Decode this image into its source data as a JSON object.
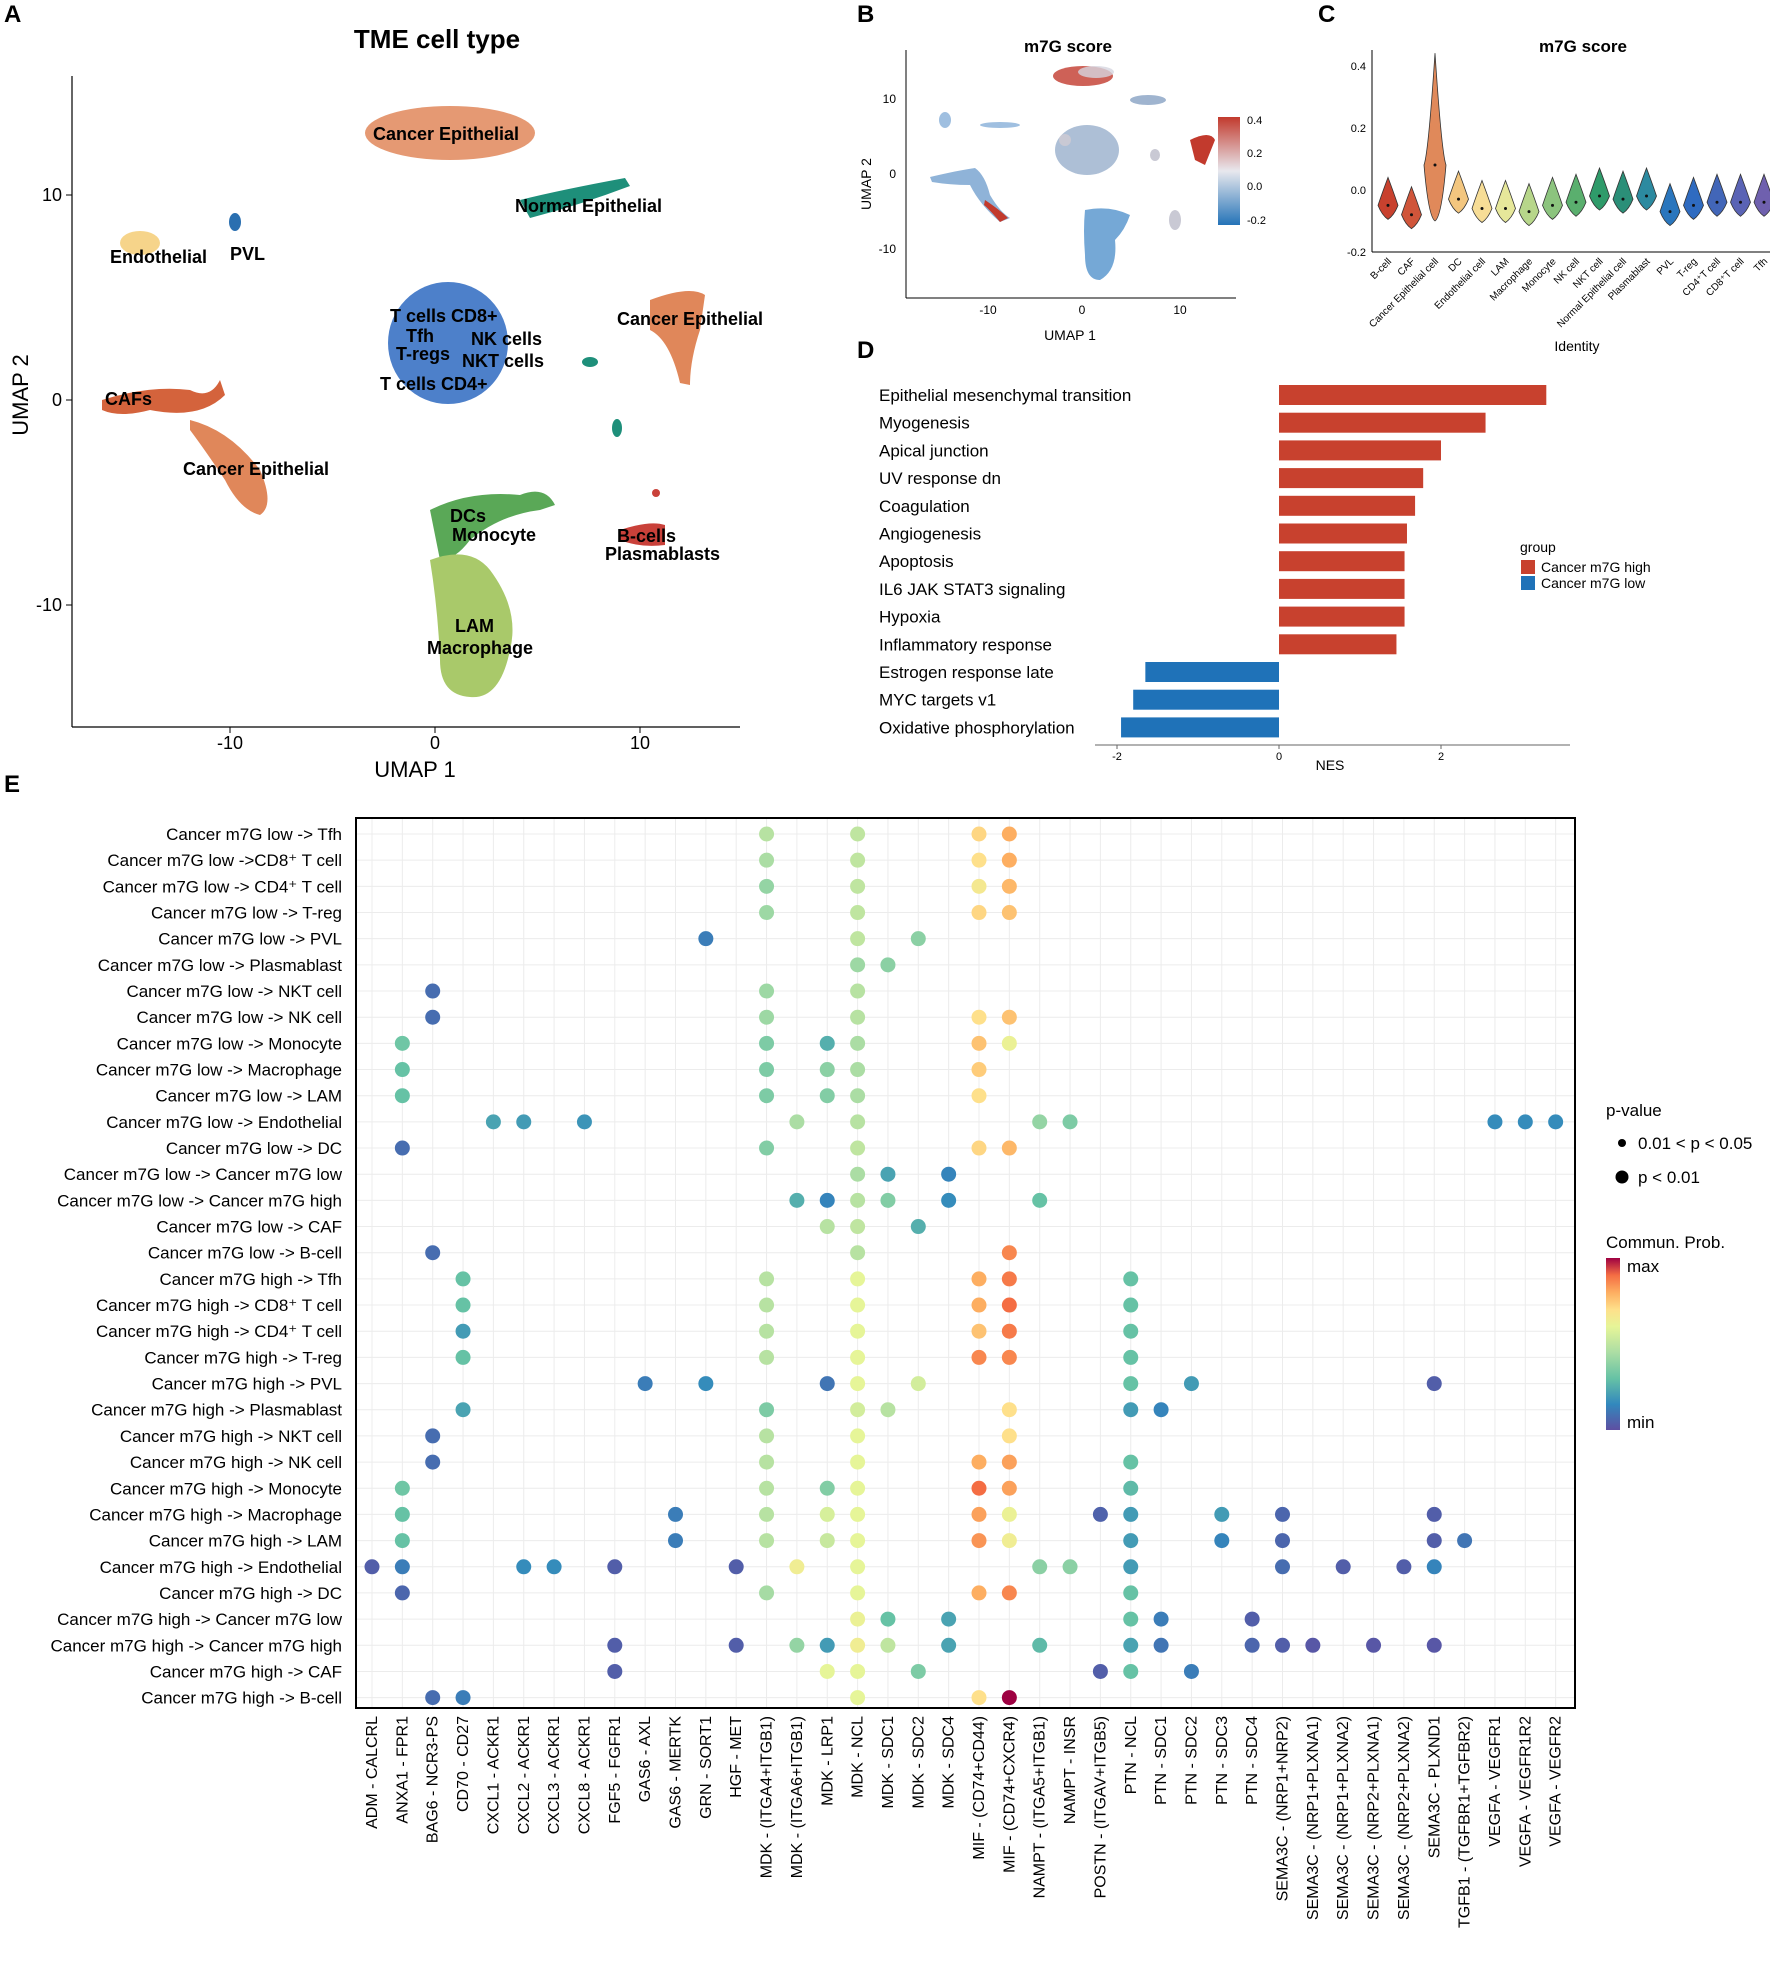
{
  "panel_letters": {
    "a": "A",
    "b": "B",
    "c": "C",
    "d": "D",
    "e": "E"
  },
  "colors": {
    "cancer_epithelial": "#e0875a",
    "normal_epithelial": "#1e8f7a",
    "endothelial": "#f6d48a",
    "pvl": "#2a6fb0",
    "cafs": "#d4633c",
    "t_nk": "#3a72c4",
    "dcs_monocyte": "#5aa857",
    "lam_macrophage": "#a9c96a",
    "bcells": "#c9413a",
    "high": "#c8412e",
    "low": "#1f72b8"
  },
  "chart_data": [
    {
      "id": "A",
      "type": "scatter",
      "title": "TME cell type",
      "xlabel": "UMAP 1",
      "ylabel": "UMAP 2",
      "xlim": [
        -18,
        15
      ],
      "ylim": [
        -16,
        16
      ],
      "xticks": [
        "-10",
        "0",
        "10"
      ],
      "yticks": [
        "10",
        "0",
        "-10"
      ],
      "labels": [
        "Cancer Epithelial",
        "Normal Epithelial",
        "Endothelial",
        "PVL",
        "T cells CD8+",
        "Tfh",
        "NK cells",
        "T-regs",
        "NKT cells",
        "T cells CD4+",
        "Cancer Epithelial",
        "CAFs",
        "Cancer Epithelial",
        "DCs",
        "Monocyte",
        "B-cells",
        "Plasmablasts",
        "LAM",
        "Macrophage"
      ]
    },
    {
      "id": "B",
      "type": "scatter",
      "title": "m7G score",
      "xlabel": "UMAP 1",
      "ylabel": "UMAP 2",
      "xticks": [
        "-10",
        "0",
        "10"
      ],
      "yticks": [
        "10",
        "0",
        "-10"
      ],
      "legend_ticks": [
        "0.4",
        "0.2",
        "0.0",
        "-0.2"
      ]
    },
    {
      "id": "C",
      "type": "violin",
      "title": "m7G score",
      "xlabel": "Identity",
      "ylabel": "",
      "ylim": [
        -0.2,
        0.45
      ],
      "yticks": [
        "0.4",
        "0.2",
        "0.0",
        "-0.2"
      ],
      "categories": [
        "B-cell",
        "CAF",
        "Cancer Epithelial cell",
        "DC",
        "Endothelial cell",
        "LAM",
        "Macrophage",
        "Monocyte",
        "NK cell",
        "NKT cell",
        "Normal Epithelial cell",
        "Plasmablast",
        "PVL",
        "T-reg",
        "CD4⁺T cell",
        "CD8⁺T cell",
        "Tfh"
      ],
      "medians": [
        -0.05,
        -0.08,
        0.08,
        -0.03,
        -0.06,
        -0.06,
        -0.07,
        -0.05,
        -0.04,
        -0.02,
        -0.03,
        -0.02,
        -0.07,
        -0.05,
        -0.04,
        -0.04,
        -0.04
      ]
    },
    {
      "id": "D",
      "type": "bar",
      "orientation": "horizontal",
      "xlabel": "NES",
      "xticks": [
        "-2",
        "0",
        "2"
      ],
      "xlim": [
        -2.2,
        3.6
      ],
      "legend_title": "group",
      "series_names": [
        "Cancer m7G high",
        "Cancer m7G low"
      ],
      "categories": [
        "Epithelial mesenchymal transition",
        "Myogenesis",
        "Apical junction",
        "UV response dn",
        "Coagulation",
        "Angiogenesis",
        "Apoptosis",
        "IL6 JAK STAT3 signaling",
        "Hypoxia",
        "Inflammatory response",
        "Estrogen response late",
        "MYC targets v1",
        "Oxidative phosphorylation"
      ],
      "values": [
        3.3,
        2.55,
        2.0,
        1.78,
        1.68,
        1.58,
        1.55,
        1.55,
        1.55,
        1.45,
        -1.65,
        -1.8,
        -1.95
      ]
    },
    {
      "id": "E",
      "type": "scatter",
      "subtype": "dot-matrix",
      "legend_pvalue_title": "p-value",
      "legend_pvalue_items": [
        "0.01 < p < 0.05",
        "p < 0.01"
      ],
      "legend_prob_title": "Commun. Prob.",
      "legend_prob_max": "max",
      "legend_prob_min": "min",
      "rows": [
        "Cancer m7G low -> Tfh",
        "Cancer m7G low ->CD8⁺ T cell",
        "Cancer m7G low -> CD4⁺ T cell",
        "Cancer m7G low -> T-reg",
        "Cancer m7G low -> PVL",
        "Cancer m7G low -> Plasmablast",
        "Cancer m7G low -> NKT cell",
        "Cancer m7G low -> NK cell",
        "Cancer m7G low -> Monocyte",
        "Cancer m7G low -> Macrophage",
        "Cancer m7G low -> LAM",
        "Cancer m7G low -> Endothelial",
        "Cancer m7G low -> DC",
        "Cancer m7G low -> Cancer m7G low",
        "Cancer m7G low -> Cancer m7G high",
        "Cancer m7G low -> CAF",
        "Cancer m7G low -> B-cell",
        "Cancer m7G high -> Tfh",
        "Cancer m7G high -> CD8⁺ T cell",
        "Cancer m7G high -> CD4⁺ T cell",
        "Cancer m7G high -> T-reg",
        "Cancer m7G high -> PVL",
        "Cancer m7G high -> Plasmablast",
        "Cancer m7G high -> NKT cell",
        "Cancer m7G high -> NK cell",
        "Cancer m7G high -> Monocyte",
        "Cancer m7G high -> Macrophage",
        "Cancer m7G high -> LAM",
        "Cancer m7G high -> Endothelial",
        "Cancer m7G high -> DC",
        "Cancer m7G high -> Cancer m7G low",
        "Cancer m7G high -> Cancer m7G high",
        "Cancer m7G high -> CAF",
        "Cancer m7G high -> B-cell"
      ],
      "cols": [
        "ADM - CALCRL",
        "ANXA1 - FPR1",
        "BAG6 - NCR3-PS",
        "CD70 - CD27",
        "CXCL1 - ACKR1",
        "CXCL2 - ACKR1",
        "CXCL3 - ACKR1",
        "CXCL8 - ACKR1",
        "FGF5 - FGFR1",
        "GAS6 - AXL",
        "GAS6 - MERTK",
        "GRN - SORT1",
        "HGF - MET",
        "MDK - (ITGA4+ITGB1)",
        "MDK - (ITGA6+ITGB1)",
        "MDK - LRP1",
        "MDK - NCL",
        "MDK - SDC1",
        "MDK - SDC2",
        "MDK - SDC4",
        "MIF - (CD74+CD44)",
        "MIF - (CD74+CXCR4)",
        "NAMPT - (ITGA5+ITGB1)",
        "NAMPT - INSR",
        "POSTN - (ITGAV+ITGB5)",
        "PTN - NCL",
        "PTN - SDC1",
        "PTN - SDC2",
        "PTN - SDC3",
        "PTN - SDC4",
        "SEMA3C - (NRP1+NRP2)",
        "SEMA3C - (NRP1+PLXNA1)",
        "SEMA3C - (NRP1+PLXNA2)",
        "SEMA3C - (NRP2+PLXNA1)",
        "SEMA3C - (NRP2+PLXNA2)",
        "SEMA3C - PLXND1",
        "TGFB1 - (TGFBR1+TGFBR2)",
        "VEGFA - VEGFR1",
        "VEGFA - VEGFR1R2",
        "VEGFA - VEGFR2"
      ],
      "points": [
        [
          0,
          13,
          0.48
        ],
        [
          0,
          16,
          0.5
        ],
        [
          0,
          20,
          0.72
        ],
        [
          0,
          21,
          0.8
        ],
        [
          1,
          13,
          0.45
        ],
        [
          1,
          16,
          0.5
        ],
        [
          1,
          20,
          0.7
        ],
        [
          1,
          21,
          0.8
        ],
        [
          2,
          13,
          0.4
        ],
        [
          2,
          16,
          0.5
        ],
        [
          2,
          20,
          0.66
        ],
        [
          2,
          21,
          0.78
        ],
        [
          3,
          13,
          0.42
        ],
        [
          3,
          16,
          0.5
        ],
        [
          3,
          20,
          0.72
        ],
        [
          3,
          21,
          0.76
        ],
        [
          4,
          11,
          0.12
        ],
        [
          4,
          16,
          0.5
        ],
        [
          4,
          18,
          0.38
        ],
        [
          5,
          16,
          0.42
        ],
        [
          5,
          17,
          0.38
        ],
        [
          6,
          2,
          0.08
        ],
        [
          6,
          13,
          0.42
        ],
        [
          6,
          16,
          0.48
        ],
        [
          7,
          2,
          0.08
        ],
        [
          7,
          13,
          0.42
        ],
        [
          7,
          16,
          0.48
        ],
        [
          7,
          20,
          0.7
        ],
        [
          7,
          21,
          0.76
        ],
        [
          8,
          1,
          0.32
        ],
        [
          8,
          13,
          0.35
        ],
        [
          8,
          15,
          0.25
        ],
        [
          8,
          16,
          0.45
        ],
        [
          8,
          20,
          0.76
        ],
        [
          8,
          21,
          0.62
        ],
        [
          9,
          1,
          0.3
        ],
        [
          9,
          13,
          0.35
        ],
        [
          9,
          15,
          0.38
        ],
        [
          9,
          16,
          0.45
        ],
        [
          9,
          20,
          0.74
        ],
        [
          10,
          1,
          0.3
        ],
        [
          10,
          13,
          0.35
        ],
        [
          10,
          15,
          0.36
        ],
        [
          10,
          16,
          0.45
        ],
        [
          10,
          20,
          0.7
        ],
        [
          11,
          4,
          0.22
        ],
        [
          11,
          5,
          0.2
        ],
        [
          11,
          7,
          0.18
        ],
        [
          11,
          14,
          0.45
        ],
        [
          11,
          16,
          0.48
        ],
        [
          11,
          22,
          0.4
        ],
        [
          11,
          23,
          0.35
        ],
        [
          11,
          37,
          0.16
        ],
        [
          11,
          38,
          0.16
        ],
        [
          11,
          39,
          0.16
        ],
        [
          12,
          1,
          0.08
        ],
        [
          12,
          13,
          0.36
        ],
        [
          12,
          16,
          0.5
        ],
        [
          12,
          20,
          0.72
        ],
        [
          12,
          21,
          0.78
        ],
        [
          13,
          16,
          0.45
        ],
        [
          13,
          17,
          0.22
        ],
        [
          13,
          19,
          0.14
        ],
        [
          14,
          14,
          0.25
        ],
        [
          14,
          15,
          0.14
        ],
        [
          14,
          16,
          0.48
        ],
        [
          14,
          17,
          0.36
        ],
        [
          14,
          19,
          0.16
        ],
        [
          14,
          22,
          0.3
        ],
        [
          15,
          15,
          0.48
        ],
        [
          15,
          16,
          0.5
        ],
        [
          15,
          18,
          0.25
        ],
        [
          16,
          2,
          0.08
        ],
        [
          16,
          16,
          0.48
        ],
        [
          16,
          21,
          0.86
        ],
        [
          17,
          3,
          0.3
        ],
        [
          17,
          13,
          0.48
        ],
        [
          17,
          16,
          0.6
        ],
        [
          17,
          20,
          0.8
        ],
        [
          17,
          21,
          0.88
        ],
        [
          17,
          25,
          0.3
        ],
        [
          18,
          3,
          0.3
        ],
        [
          18,
          13,
          0.48
        ],
        [
          18,
          16,
          0.6
        ],
        [
          18,
          20,
          0.8
        ],
        [
          18,
          21,
          0.9
        ],
        [
          18,
          25,
          0.3
        ],
        [
          19,
          3,
          0.2
        ],
        [
          19,
          13,
          0.48
        ],
        [
          19,
          16,
          0.6
        ],
        [
          19,
          20,
          0.76
        ],
        [
          19,
          21,
          0.88
        ],
        [
          19,
          25,
          0.3
        ],
        [
          20,
          3,
          0.3
        ],
        [
          20,
          13,
          0.48
        ],
        [
          20,
          16,
          0.6
        ],
        [
          20,
          20,
          0.86
        ],
        [
          20,
          21,
          0.86
        ],
        [
          20,
          25,
          0.3
        ],
        [
          21,
          9,
          0.12
        ],
        [
          21,
          11,
          0.16
        ],
        [
          21,
          15,
          0.1
        ],
        [
          21,
          16,
          0.6
        ],
        [
          21,
          18,
          0.55
        ],
        [
          21,
          25,
          0.3
        ],
        [
          21,
          27,
          0.2
        ],
        [
          21,
          35,
          0.04
        ],
        [
          22,
          3,
          0.22
        ],
        [
          22,
          13,
          0.35
        ],
        [
          22,
          16,
          0.55
        ],
        [
          22,
          17,
          0.48
        ],
        [
          22,
          21,
          0.7
        ],
        [
          22,
          25,
          0.2
        ],
        [
          22,
          26,
          0.14
        ],
        [
          23,
          2,
          0.08
        ],
        [
          23,
          13,
          0.48
        ],
        [
          23,
          16,
          0.6
        ],
        [
          23,
          21,
          0.7
        ],
        [
          24,
          2,
          0.08
        ],
        [
          24,
          13,
          0.48
        ],
        [
          24,
          16,
          0.6
        ],
        [
          24,
          20,
          0.8
        ],
        [
          24,
          21,
          0.82
        ],
        [
          24,
          25,
          0.3
        ],
        [
          25,
          1,
          0.32
        ],
        [
          25,
          13,
          0.48
        ],
        [
          25,
          15,
          0.36
        ],
        [
          25,
          16,
          0.6
        ],
        [
          25,
          20,
          0.9
        ],
        [
          25,
          21,
          0.82
        ],
        [
          25,
          25,
          0.28
        ],
        [
          26,
          1,
          0.3
        ],
        [
          26,
          10,
          0.12
        ],
        [
          26,
          13,
          0.48
        ],
        [
          26,
          15,
          0.56
        ],
        [
          26,
          16,
          0.6
        ],
        [
          26,
          20,
          0.82
        ],
        [
          26,
          21,
          0.62
        ],
        [
          26,
          24,
          0.05
        ],
        [
          26,
          25,
          0.2
        ],
        [
          26,
          28,
          0.2
        ],
        [
          26,
          30,
          0.06
        ],
        [
          26,
          35,
          0.04
        ],
        [
          27,
          1,
          0.3
        ],
        [
          27,
          10,
          0.12
        ],
        [
          27,
          13,
          0.48
        ],
        [
          27,
          15,
          0.52
        ],
        [
          27,
          16,
          0.6
        ],
        [
          27,
          20,
          0.84
        ],
        [
          27,
          21,
          0.64
        ],
        [
          27,
          25,
          0.2
        ],
        [
          27,
          28,
          0.14
        ],
        [
          27,
          30,
          0.06
        ],
        [
          27,
          35,
          0.04
        ],
        [
          27,
          36,
          0.1
        ],
        [
          28,
          0,
          0.04
        ],
        [
          28,
          1,
          0.12
        ],
        [
          28,
          5,
          0.16
        ],
        [
          28,
          6,
          0.16
        ],
        [
          28,
          8,
          0.04
        ],
        [
          28,
          12,
          0.04
        ],
        [
          28,
          14,
          0.64
        ],
        [
          28,
          16,
          0.6
        ],
        [
          28,
          22,
          0.38
        ],
        [
          28,
          23,
          0.38
        ],
        [
          28,
          25,
          0.2
        ],
        [
          28,
          30,
          0.08
        ],
        [
          28,
          32,
          0.04
        ],
        [
          28,
          34,
          0.04
        ],
        [
          28,
          35,
          0.14
        ],
        [
          29,
          1,
          0.06
        ],
        [
          29,
          13,
          0.44
        ],
        [
          29,
          16,
          0.6
        ],
        [
          29,
          20,
          0.8
        ],
        [
          29,
          21,
          0.86
        ],
        [
          29,
          25,
          0.3
        ],
        [
          30,
          16,
          0.62
        ],
        [
          30,
          17,
          0.3
        ],
        [
          30,
          19,
          0.22
        ],
        [
          30,
          25,
          0.3
        ],
        [
          30,
          26,
          0.12
        ],
        [
          30,
          29,
          0.04
        ],
        [
          31,
          8,
          0.04
        ],
        [
          31,
          12,
          0.04
        ],
        [
          31,
          14,
          0.4
        ],
        [
          31,
          15,
          0.2
        ],
        [
          31,
          16,
          0.64
        ],
        [
          31,
          17,
          0.5
        ],
        [
          31,
          19,
          0.22
        ],
        [
          31,
          22,
          0.28
        ],
        [
          31,
          25,
          0.22
        ],
        [
          31,
          26,
          0.1
        ],
        [
          31,
          29,
          0.06
        ],
        [
          31,
          30,
          0.04
        ],
        [
          31,
          31,
          0.02
        ],
        [
          31,
          33,
          0.02
        ],
        [
          31,
          35,
          0.02
        ],
        [
          32,
          8,
          0.04
        ],
        [
          32,
          15,
          0.6
        ],
        [
          32,
          16,
          0.6
        ],
        [
          32,
          18,
          0.35
        ],
        [
          32,
          24,
          0.04
        ],
        [
          32,
          25,
          0.3
        ],
        [
          32,
          27,
          0.12
        ],
        [
          33,
          2,
          0.08
        ],
        [
          33,
          3,
          0.12
        ],
        [
          33,
          16,
          0.6
        ],
        [
          33,
          20,
          0.7
        ],
        [
          33,
          21,
          1.0
        ]
      ]
    }
  ]
}
